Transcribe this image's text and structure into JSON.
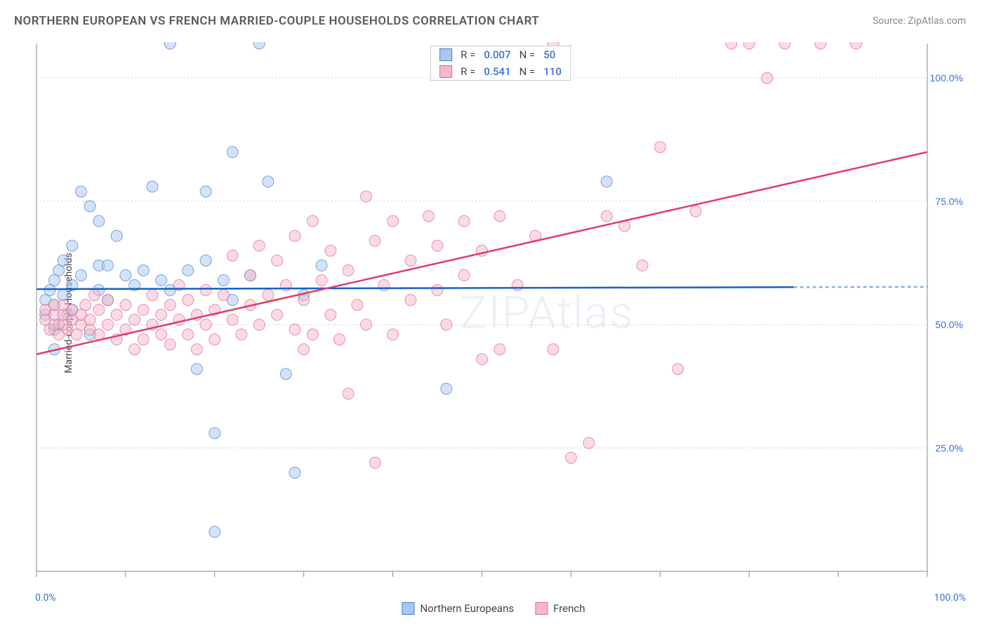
{
  "title": "NORTHERN EUROPEAN VS FRENCH MARRIED-COUPLE HOUSEHOLDS CORRELATION CHART",
  "source_label": "Source: ",
  "source_name": "ZipAtlas.com",
  "watermark": "ZIPAtlas",
  "y_axis_label": "Married-couple Households",
  "chart": {
    "type": "scatter",
    "xlim": [
      0,
      100
    ],
    "ylim": [
      0,
      107
    ],
    "x_tick_positions": [
      0,
      10,
      20,
      30,
      40,
      50,
      60,
      70,
      80,
      90,
      100
    ],
    "y_tick_labels": [
      {
        "pos": 25,
        "label": "25.0%"
      },
      {
        "pos": 50,
        "label": "50.0%"
      },
      {
        "pos": 75,
        "label": "75.0%"
      },
      {
        "pos": 100,
        "label": "100.0%"
      }
    ],
    "x_min_label": "0.0%",
    "x_max_label": "100.0%",
    "grid_color": "#d0d0d0",
    "axis_color": "#888888",
    "background_color": "#ffffff",
    "marker_radius": 8,
    "marker_opacity": 0.5,
    "series": [
      {
        "name": "Northern Europeans",
        "color_fill": "#a8c8f0",
        "color_stroke": "#4a7fc9",
        "trend_color": "#1a5fc9",
        "trend_width": 2.5,
        "trend": {
          "x1": 0,
          "y1": 57.2,
          "x2": 85,
          "y2": 57.6,
          "dash_from": 85,
          "dash_to": 100
        },
        "R": "0.007",
        "N": "50",
        "points": [
          [
            1,
            52
          ],
          [
            1,
            55
          ],
          [
            1.5,
            57
          ],
          [
            2,
            49
          ],
          [
            2,
            54
          ],
          [
            2,
            59
          ],
          [
            2.5,
            50
          ],
          [
            2.5,
            61
          ],
          [
            3,
            56
          ],
          [
            3,
            63
          ],
          [
            3.5,
            52
          ],
          [
            4,
            58
          ],
          [
            4,
            66
          ],
          [
            5,
            60
          ],
          [
            5,
            77
          ],
          [
            6,
            48
          ],
          [
            6,
            74
          ],
          [
            7,
            57
          ],
          [
            7,
            62
          ],
          [
            7,
            71
          ],
          [
            8,
            55
          ],
          [
            8,
            62
          ],
          [
            9,
            68
          ],
          [
            10,
            60
          ],
          [
            11,
            58
          ],
          [
            12,
            61
          ],
          [
            13,
            78
          ],
          [
            14,
            59
          ],
          [
            15,
            57
          ],
          [
            15,
            107
          ],
          [
            17,
            61
          ],
          [
            18,
            41
          ],
          [
            19,
            77
          ],
          [
            19,
            63
          ],
          [
            20,
            28
          ],
          [
            20,
            8
          ],
          [
            21,
            59
          ],
          [
            22,
            55
          ],
          [
            22,
            85
          ],
          [
            24,
            60
          ],
          [
            25,
            107
          ],
          [
            26,
            79
          ],
          [
            28,
            40
          ],
          [
            29,
            20
          ],
          [
            30,
            56
          ],
          [
            32,
            62
          ],
          [
            46,
            37
          ],
          [
            64,
            79
          ],
          [
            2,
            45
          ],
          [
            4,
            53
          ]
        ]
      },
      {
        "name": "French",
        "color_fill": "#f5b8c8",
        "color_stroke": "#e06a8a",
        "trend_color": "#e23a6a",
        "trend_width": 2.5,
        "trend": {
          "x1": 0,
          "y1": 44,
          "x2": 100,
          "y2": 85
        },
        "R": "0.541",
        "N": "110",
        "points": [
          [
            1,
            51
          ],
          [
            1,
            53
          ],
          [
            1.5,
            49
          ],
          [
            2,
            50
          ],
          [
            2,
            52
          ],
          [
            2,
            54
          ],
          [
            2.5,
            48
          ],
          [
            3,
            50
          ],
          [
            3,
            52
          ],
          [
            3,
            54
          ],
          [
            3.5,
            49
          ],
          [
            4,
            51
          ],
          [
            4,
            53
          ],
          [
            4.5,
            48
          ],
          [
            5,
            50
          ],
          [
            5,
            52
          ],
          [
            5.5,
            54
          ],
          [
            6,
            49
          ],
          [
            6,
            51
          ],
          [
            6.5,
            56
          ],
          [
            7,
            48
          ],
          [
            7,
            53
          ],
          [
            8,
            50
          ],
          [
            8,
            55
          ],
          [
            9,
            47
          ],
          [
            9,
            52
          ],
          [
            10,
            49
          ],
          [
            10,
            54
          ],
          [
            11,
            51
          ],
          [
            11,
            45
          ],
          [
            12,
            53
          ],
          [
            12,
            47
          ],
          [
            13,
            50
          ],
          [
            13,
            56
          ],
          [
            14,
            52
          ],
          [
            14,
            48
          ],
          [
            15,
            54
          ],
          [
            15,
            46
          ],
          [
            16,
            51
          ],
          [
            16,
            58
          ],
          [
            17,
            48
          ],
          [
            17,
            55
          ],
          [
            18,
            52
          ],
          [
            18,
            45
          ],
          [
            19,
            57
          ],
          [
            19,
            50
          ],
          [
            20,
            53
          ],
          [
            20,
            47
          ],
          [
            21,
            56
          ],
          [
            22,
            51
          ],
          [
            22,
            64
          ],
          [
            23,
            48
          ],
          [
            24,
            54
          ],
          [
            24,
            60
          ],
          [
            25,
            66
          ],
          [
            25,
            50
          ],
          [
            26,
            56
          ],
          [
            27,
            52
          ],
          [
            27,
            63
          ],
          [
            28,
            58
          ],
          [
            29,
            49
          ],
          [
            29,
            68
          ],
          [
            30,
            55
          ],
          [
            30,
            45
          ],
          [
            31,
            71
          ],
          [
            31,
            48
          ],
          [
            32,
            59
          ],
          [
            33,
            52
          ],
          [
            33,
            65
          ],
          [
            34,
            47
          ],
          [
            35,
            61
          ],
          [
            35,
            36
          ],
          [
            36,
            54
          ],
          [
            37,
            76
          ],
          [
            37,
            50
          ],
          [
            38,
            67
          ],
          [
            38,
            22
          ],
          [
            39,
            58
          ],
          [
            40,
            71
          ],
          [
            40,
            48
          ],
          [
            42,
            63
          ],
          [
            42,
            55
          ],
          [
            44,
            72
          ],
          [
            45,
            57
          ],
          [
            45,
            66
          ],
          [
            48,
            71
          ],
          [
            48,
            60
          ],
          [
            50,
            65
          ],
          [
            50,
            43
          ],
          [
            52,
            72
          ],
          [
            54,
            58
          ],
          [
            56,
            68
          ],
          [
            58,
            45
          ],
          [
            58,
            107
          ],
          [
            60,
            23
          ],
          [
            62,
            26
          ],
          [
            64,
            72
          ],
          [
            66,
            70
          ],
          [
            70,
            86
          ],
          [
            72,
            41
          ],
          [
            74,
            73
          ],
          [
            78,
            107
          ],
          [
            80,
            107
          ],
          [
            82,
            100
          ],
          [
            84,
            107
          ],
          [
            88,
            107
          ],
          [
            92,
            107
          ],
          [
            68,
            62
          ],
          [
            46,
            50
          ],
          [
            52,
            45
          ]
        ]
      }
    ]
  },
  "legend_bottom": [
    {
      "label": "Northern Europeans",
      "fill": "#a8c8f0",
      "stroke": "#4a7fc9"
    },
    {
      "label": "French",
      "fill": "#f5b8c8",
      "stroke": "#e06a8a"
    }
  ]
}
